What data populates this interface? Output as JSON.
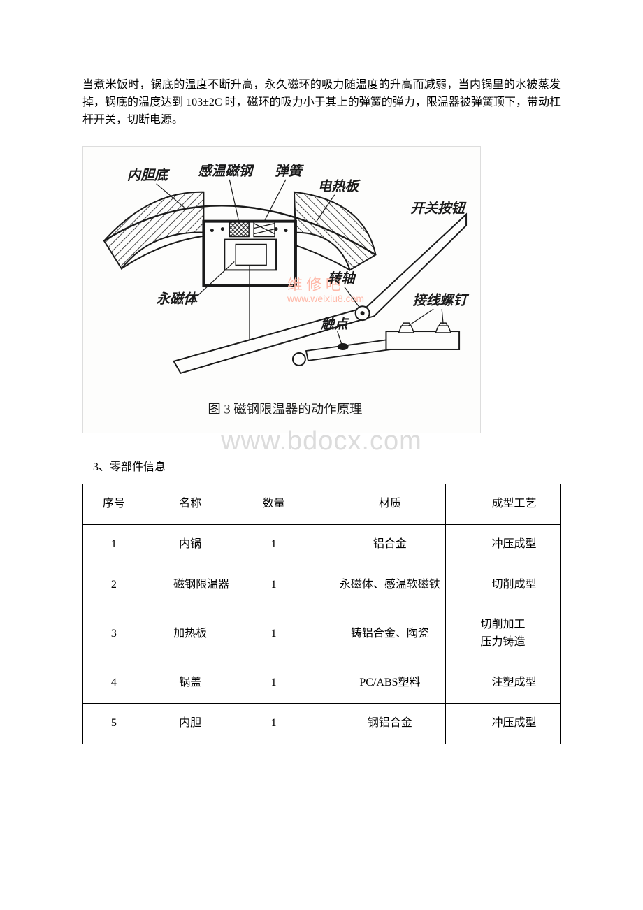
{
  "paragraph": "当煮米饭时，锅底的温度不断升高，永久磁环的吸力随温度的升高而减弱，当内锅里的水被蒸发掉，锅底的温度达到 103±2C 时，磁环的吸力小于其上的弹簧的弹力，限温器被弹簧顶下，带动杠杆开关，切断电源。",
  "figure": {
    "caption": "图 3 磁钢限温器的动作原理",
    "labels": {
      "inner_bottom": "内胆底",
      "thermomagnet": "感温磁钢",
      "spring": "弹簧",
      "hotplate": "电热板",
      "switch_button": "开关按钮",
      "permanent_magnet": "永磁体",
      "pivot": "转轴",
      "contact": "触点",
      "terminal_screw": "接线螺钉"
    },
    "watermark_inline": {
      "text": "维 修 吧",
      "url": "www.weixiu8.com"
    },
    "colors": {
      "line": "#1a1a1a",
      "wm": "#ffb8a8",
      "bg": "#fdfdfc"
    }
  },
  "watermark": "www.bdocx.com",
  "section_heading": "3、零部件信息",
  "table": {
    "headers": [
      "序号",
      "名称",
      "数量",
      "材质",
      "成型工艺"
    ],
    "rows": [
      {
        "idx": "1",
        "name": "内锅",
        "qty": "1",
        "material": "铝合金",
        "process": "冲压成型"
      },
      {
        "idx": "2",
        "name": "磁钢限温器",
        "qty": "1",
        "material": "永磁体、感温软磁铁",
        "process": "切削成型"
      },
      {
        "idx": "3",
        "name": "加热板",
        "qty": "1",
        "material": "铸铝合金、陶瓷",
        "process": "切削加工\n压力铸造"
      },
      {
        "idx": "4",
        "name": "锅盖",
        "qty": "1",
        "material": "PC/ABS塑料",
        "process": "注塑成型"
      },
      {
        "idx": "5",
        "name": "内胆",
        "qty": "1",
        "material": "钢铝合金",
        "process": "冲压成型"
      }
    ]
  }
}
